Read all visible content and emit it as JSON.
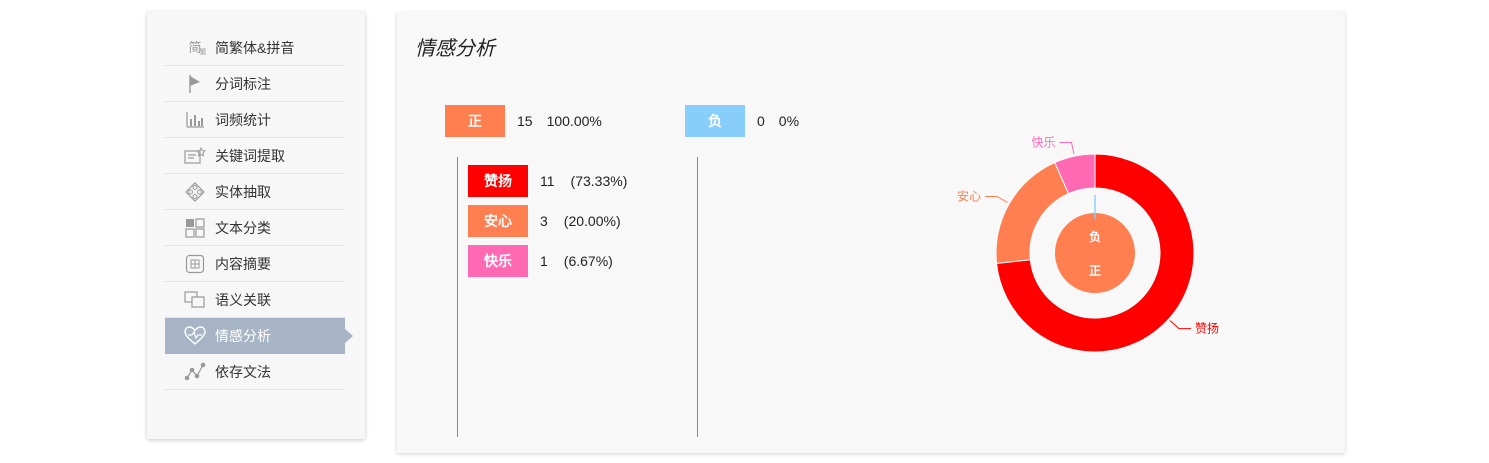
{
  "sidebar": {
    "items": [
      {
        "label": "简繁体&拼音",
        "icon": "simplified-traditional-icon",
        "icon_glyph": "简",
        "icon_sub": "繁",
        "active": false
      },
      {
        "label": "分词标注",
        "icon": "flag-icon",
        "active": false
      },
      {
        "label": "词频统计",
        "icon": "bar-chart-icon",
        "active": false
      },
      {
        "label": "关键词提取",
        "icon": "keyword-extract-icon",
        "active": false
      },
      {
        "label": "实体抽取",
        "icon": "entity-icon",
        "active": false
      },
      {
        "label": "文本分类",
        "icon": "grid-icon",
        "active": false
      },
      {
        "label": "内容摘要",
        "icon": "summary-icon",
        "icon_glyph": "画",
        "active": false
      },
      {
        "label": "语义关联",
        "icon": "link-squares-icon",
        "active": false
      },
      {
        "label": "情感分析",
        "icon": "heart-icon",
        "active": true
      },
      {
        "label": "依存文法",
        "icon": "graph-icon",
        "active": false
      }
    ]
  },
  "main": {
    "title": "情感分析",
    "positive": {
      "label": "正",
      "count": "15",
      "percent": "100.00%",
      "color": "#ff7f50"
    },
    "negative": {
      "label": "负",
      "count": "0",
      "percent": "0%",
      "color": "#87cefa"
    },
    "emotions": [
      {
        "label": "赞扬",
        "count": "11",
        "percent": "(73.33%)",
        "color": "#ff0000"
      },
      {
        "label": "安心",
        "count": "3",
        "percent": "(20.00%)",
        "color": "#ff7f50"
      },
      {
        "label": "快乐",
        "count": "1",
        "percent": "(6.67%)",
        "color": "#ff69b4"
      }
    ]
  },
  "chart_data": {
    "type": "pie",
    "title": "",
    "inner": {
      "slices": [
        {
          "name": "正",
          "value": 15,
          "color": "#ff7f50"
        },
        {
          "name": "负",
          "value": 0,
          "color": "#87cefa"
        }
      ]
    },
    "outer": {
      "slices": [
        {
          "name": "赞扬",
          "value": 11,
          "color": "#ff0000"
        },
        {
          "name": "安心",
          "value": 3,
          "color": "#ff7f50"
        },
        {
          "name": "快乐",
          "value": 1,
          "color": "#ff69b4"
        }
      ]
    }
  }
}
